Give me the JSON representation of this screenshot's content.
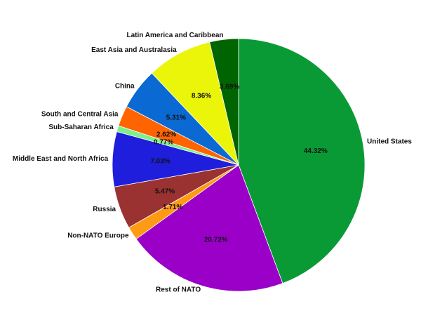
{
  "chart_data": {
    "type": "pie",
    "title": "",
    "start": "top",
    "direction": "clockwise",
    "categories": [
      "United States",
      "Rest of NATO",
      "Non-NATO Europe",
      "Russia",
      "Middle East and North Africa",
      "Sub-Saharan Africa",
      "South and Central Asia",
      "China",
      "East Asia and Australasia",
      "Latin America and Caribbean"
    ],
    "values": [
      44.32,
      20.72,
      1.71,
      5.47,
      7.03,
      0.77,
      2.62,
      5.31,
      8.36,
      3.69
    ],
    "value_labels": [
      "44.32%",
      "20.72%",
      "1.71%",
      "5.47%",
      "7.03%",
      "0.77%",
      "2.62%",
      "5.31%",
      "8.36%",
      "3.69%"
    ],
    "colors": [
      "#0a9a35",
      "#9a00c8",
      "#ff9a14",
      "#9a3232",
      "#1e1edc",
      "#7ef08c",
      "#ff6400",
      "#0a69d2",
      "#ebf50a",
      "#006400"
    ]
  }
}
